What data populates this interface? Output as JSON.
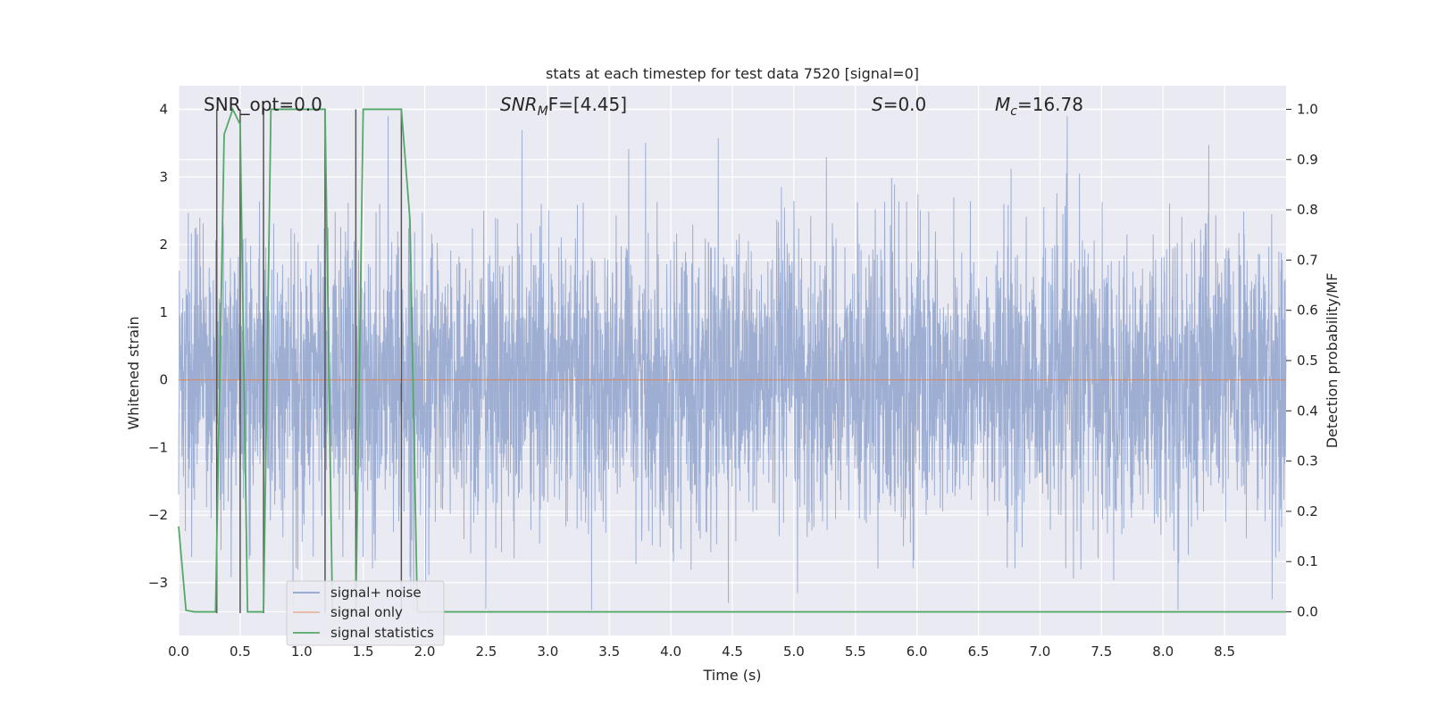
{
  "chart_data": {
    "type": "line",
    "title": "stats at each timestep for test data 7520 [signal=0]",
    "xlabel": "Time (s)",
    "ylabel": "Whitened strain",
    "y2label": "Detection probability/MF",
    "xlim": [
      0.0,
      9.0
    ],
    "ylim": [
      -3.78,
      4.35
    ],
    "y2lim": [
      -0.047,
      1.047
    ],
    "xticks": [
      "0.0",
      "0.5",
      "1.0",
      "1.5",
      "2.0",
      "2.5",
      "3.0",
      "3.5",
      "4.0",
      "4.5",
      "5.0",
      "5.5",
      "6.0",
      "6.5",
      "7.0",
      "7.5",
      "8.0",
      "8.5"
    ],
    "yticks": [
      "−3",
      "−2",
      "−1",
      "0",
      "1",
      "2",
      "3",
      "4"
    ],
    "y2ticks": [
      "0.0",
      "0.1",
      "0.2",
      "0.3",
      "0.4",
      "0.5",
      "0.6",
      "0.7",
      "0.8",
      "0.9",
      "1.0"
    ],
    "grid": true,
    "legend_position": "bottom-left",
    "annotations": {
      "snr_opt": "SNR_opt=0.0",
      "snr_mf_base": "SNR",
      "snr_mf_sub": "M",
      "snr_mf_rest": "F=[4.45]",
      "s_base": "S",
      "s_rest": "=0.0",
      "mc_base": "M",
      "mc_sub": "c",
      "mc_rest": "=16.78"
    },
    "series": [
      {
        "name": "signal+ noise",
        "color": "#8fa3cc",
        "description_values": "whitened noise strain, roughly Gaussian, spanning about -3.4 to 3.9",
        "envelope_max": 3.9,
        "envelope_min": -3.4
      },
      {
        "name": "signal only",
        "color": "#dd8452",
        "x": [
          0.0,
          9.0
        ],
        "y": [
          0.0,
          0.0
        ]
      },
      {
        "name": "signal statistics",
        "color": "#55a868",
        "axis": "right",
        "x": [
          0.0,
          0.06,
          0.13,
          0.2,
          0.3,
          0.37,
          0.44,
          0.5,
          0.56,
          0.63,
          0.69,
          0.75,
          1.19,
          1.25,
          1.32,
          1.38,
          1.44,
          1.5,
          1.81,
          1.88,
          1.94,
          2.0,
          9.0
        ],
        "y": [
          0.17,
          0.003,
          0.0,
          0.0,
          0.0,
          0.95,
          1.0,
          0.97,
          0.0,
          0.0,
          0.0,
          1.0,
          1.0,
          0.0,
          0.0,
          0.0,
          0.0,
          1.0,
          1.0,
          0.78,
          0.0,
          0.0,
          0.0
        ]
      }
    ],
    "vertical_markers": {
      "color": "#555555",
      "x": [
        0.31,
        0.5,
        0.69,
        1.19,
        1.44,
        1.81
      ],
      "y_top": 4.0,
      "y_bottom": -3.45
    }
  }
}
